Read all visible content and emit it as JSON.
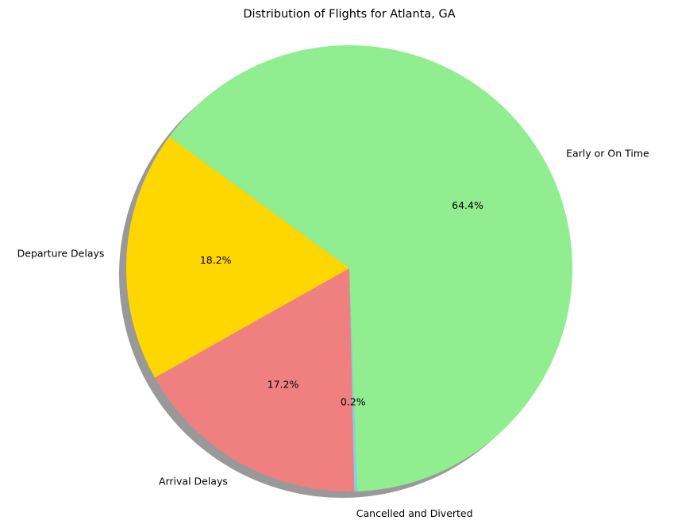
{
  "chart_data": {
    "type": "pie",
    "title": "Distribution of Flights for Atlanta, GA",
    "slices": [
      {
        "label": "Early or On Time",
        "value": 64.4,
        "pct_label": "64.4%",
        "color": "#90ee90"
      },
      {
        "label": "Departure Delays",
        "value": 18.2,
        "pct_label": "18.2%",
        "color": "#ffd700"
      },
      {
        "label": "Arrival Delays",
        "value": 17.2,
        "pct_label": "17.2%",
        "color": "#f08080"
      },
      {
        "label": "Cancelled and Diverted",
        "value": 0.2,
        "pct_label": "0.2%",
        "color": "#87ceeb"
      }
    ],
    "start_angle_deg": -88,
    "direction": "counterclockwise",
    "shadow": true,
    "legend": "none"
  }
}
